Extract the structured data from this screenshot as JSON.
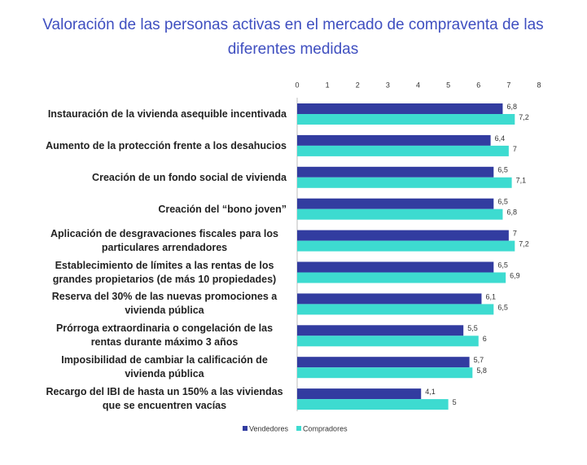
{
  "chart_data": {
    "type": "hbar",
    "title": "Valoración de las personas activas en el mercado de compraventa de las diferentes medidas",
    "categories": [
      "Instauración de la vivienda asequible incentivada",
      "Aumento de la protección frente a los desahucios",
      "Creación de un fondo social de vivienda",
      "Creación del “bono joven”",
      "Aplicación de desgravaciones fiscales para los particulares arrendadores",
      "Establecimiento de límites a las rentas de los grandes propietarios (de más 10 propiedades)",
      "Reserva del 30% de las nuevas promociones a vivienda pública",
      "Prórroga extraordinaria o congelación de las rentas durante máximo 3 años",
      "Imposibilidad de cambiar la calificación de vivienda pública",
      "Recargo del IBI de hasta un 150% a las viviendas que se encuentren vacías"
    ],
    "series": [
      {
        "name": "Vendedores",
        "color": "#323ca0",
        "values": [
          6.8,
          6.4,
          6.5,
          6.5,
          7,
          6.5,
          6.1,
          5.5,
          5.7,
          4.1
        ],
        "value_labels": [
          "6,8",
          "6,4",
          "6,5",
          "6,5",
          "7",
          "6,5",
          "6,1",
          "5,5",
          "5,7",
          "4,1"
        ]
      },
      {
        "name": "Compradores",
        "color": "#3ddbd0",
        "values": [
          7.2,
          7,
          7.1,
          6.8,
          7.2,
          6.9,
          6.5,
          6,
          5.8,
          5
        ],
        "value_labels": [
          "7,2",
          "7",
          "7,1",
          "6,8",
          "7,2",
          "6,9",
          "6,5",
          "6",
          "5,8",
          "5"
        ]
      }
    ],
    "xlim": [
      0,
      8
    ],
    "xticks": [
      0,
      1,
      2,
      3,
      4,
      5,
      6,
      7,
      8
    ],
    "legend": "bottom"
  }
}
